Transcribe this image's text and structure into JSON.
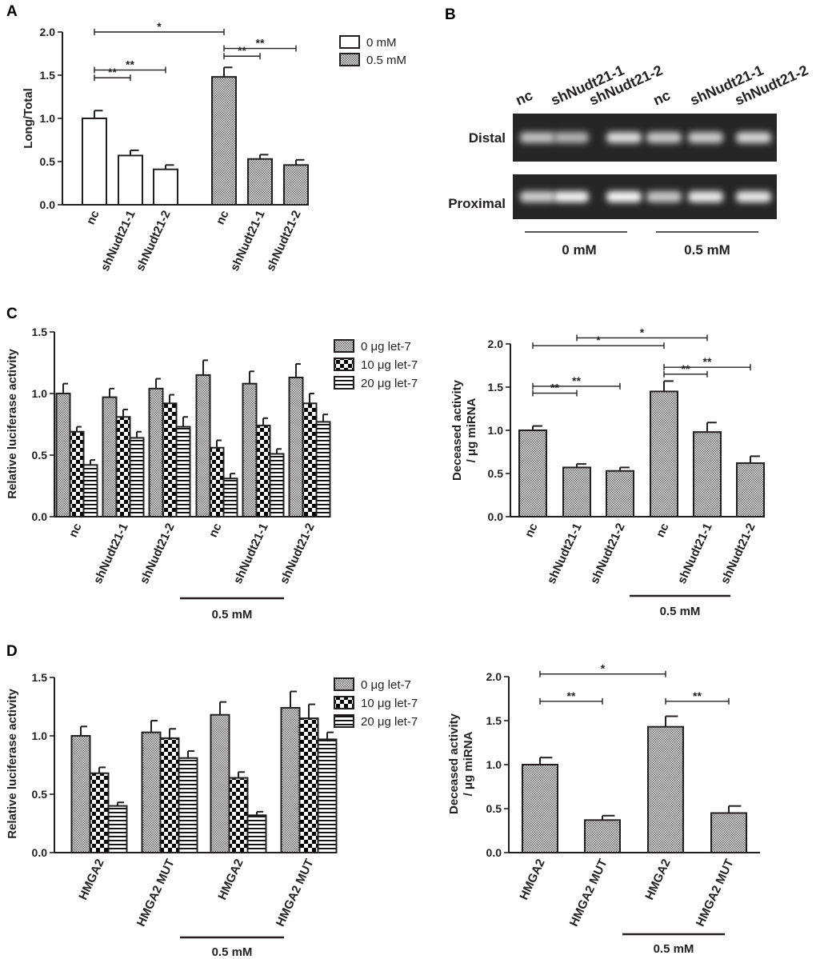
{
  "panel_labels": [
    "A",
    "B",
    "C",
    "D"
  ],
  "patterns": {
    "white": "#ffffff",
    "fine": "#7a7a7a",
    "checker": "#000000",
    "stripe": "#000000",
    "ink": "#231f20"
  },
  "chart_data": [
    {
      "id": "A",
      "type": "bar",
      "ylabel": "Long/Total",
      "ylim": [
        0,
        2.0
      ],
      "yticks": [
        "0.0",
        "0.5",
        "1.0",
        "1.5",
        "2.0"
      ],
      "categories": [
        "nc",
        "shNudt21-1",
        "shNudt21-2",
        "nc",
        "shNudt21-1",
        "shNudt21-2"
      ],
      "series": [
        {
          "name": "0 mM",
          "pattern": "white",
          "values": [
            1.0,
            0.57,
            0.41,
            null,
            null,
            null
          ],
          "errors": [
            0.09,
            0.06,
            0.05,
            null,
            null,
            null
          ]
        },
        {
          "name": "0.5 mM",
          "pattern": "fine",
          "values": [
            null,
            null,
            null,
            1.48,
            0.53,
            0.46
          ],
          "errors": [
            null,
            null,
            null,
            0.11,
            0.05,
            0.06
          ]
        }
      ],
      "legend": [
        "0 mM",
        "0.5 mM"
      ],
      "significance": [
        {
          "from": 0,
          "to": 3,
          "y": 2.0,
          "label": "*"
        },
        {
          "from": 0,
          "to": 1,
          "y": 1.47,
          "label": "**"
        },
        {
          "from": 0,
          "to": 2,
          "y": 1.56,
          "label": "**"
        },
        {
          "from": 3,
          "to": 4,
          "y": 1.72,
          "label": "**"
        },
        {
          "from": 3,
          "to": 5,
          "y": 1.81,
          "label": "**"
        }
      ]
    },
    {
      "id": "C-left",
      "type": "bar",
      "ylabel": "Relative luciferase activity",
      "ylim": [
        0,
        1.5
      ],
      "yticks": [
        "0.0",
        "0.5",
        "1.0",
        "1.5"
      ],
      "categories": [
        "nc",
        "shNudt21-1",
        "shNudt21-2",
        "nc",
        "shNudt21-1",
        "shNudt21-2"
      ],
      "series": [
        {
          "name": "0 μg let-7",
          "pattern": "fine",
          "values": [
            1.0,
            0.97,
            1.04,
            1.15,
            1.08,
            1.13
          ],
          "errors": [
            0.08,
            0.07,
            0.08,
            0.12,
            0.1,
            0.11
          ]
        },
        {
          "name": "10 μg let-7",
          "pattern": "checker",
          "values": [
            0.69,
            0.81,
            0.92,
            0.56,
            0.74,
            0.92
          ],
          "errors": [
            0.04,
            0.06,
            0.07,
            0.06,
            0.06,
            0.08
          ]
        },
        {
          "name": "20 μg let-7",
          "pattern": "stripe",
          "values": [
            0.42,
            0.64,
            0.73,
            0.31,
            0.51,
            0.77
          ],
          "errors": [
            0.04,
            0.05,
            0.08,
            0.04,
            0.04,
            0.06
          ]
        }
      ],
      "legend": [
        "0 μg let-7",
        "10 μg let-7",
        "20 μg let-7"
      ],
      "group_label": "0.5 mM"
    },
    {
      "id": "C-right",
      "type": "bar",
      "ylabel": "Deceased activity / μg miRNA",
      "ylim": [
        0,
        2.0
      ],
      "yticks": [
        "0.0",
        "0.5",
        "1.0",
        "1.5",
        "2.0"
      ],
      "categories": [
        "nc",
        "shNudt21-1",
        "shNudt21-2",
        "nc",
        "shNudt21-1",
        "shNudt21-2"
      ],
      "series": [
        {
          "name": "Deceased activity",
          "pattern": "fine",
          "values": [
            1.0,
            0.57,
            0.53,
            1.45,
            0.98,
            0.62
          ],
          "errors": [
            0.05,
            0.04,
            0.04,
            0.12,
            0.11,
            0.08
          ]
        }
      ],
      "group_label": "0.5 mM",
      "significance": [
        {
          "from": 1,
          "to": 4,
          "y": 2.07,
          "label": "*"
        },
        {
          "from": 0,
          "to": 3,
          "y": 1.98,
          "label": "*"
        },
        {
          "from": 3,
          "to": 5,
          "y": 1.73,
          "label": "**"
        },
        {
          "from": 3,
          "to": 4,
          "y": 1.65,
          "label": "**"
        },
        {
          "from": 0,
          "to": 2,
          "y": 1.51,
          "label": "**"
        },
        {
          "from": 0,
          "to": 1,
          "y": 1.43,
          "label": "**"
        }
      ]
    },
    {
      "id": "D-left",
      "type": "bar",
      "ylabel": "Relative luciferase activity",
      "ylim": [
        0,
        1.5
      ],
      "yticks": [
        "0.0",
        "0.5",
        "1.0",
        "1.5"
      ],
      "categories": [
        "HMGA2",
        "HMGA2 MUT",
        "HMGA2",
        "HMGA2 MUT"
      ],
      "series": [
        {
          "name": "0 μg let-7",
          "pattern": "fine",
          "values": [
            1.0,
            1.03,
            1.18,
            1.24
          ],
          "errors": [
            0.08,
            0.1,
            0.11,
            0.14
          ]
        },
        {
          "name": "10 μg let-7",
          "pattern": "checker",
          "values": [
            0.68,
            0.98,
            0.64,
            1.15
          ],
          "errors": [
            0.05,
            0.08,
            0.05,
            0.12
          ]
        },
        {
          "name": "20 μg let-7",
          "pattern": "stripe",
          "values": [
            0.4,
            0.81,
            0.32,
            0.97
          ],
          "errors": [
            0.03,
            0.06,
            0.03,
            0.06
          ]
        }
      ],
      "legend": [
        "0 μg let-7",
        "10 μg let-7",
        "20 μg let-7"
      ],
      "group_label": "0.5 mM"
    },
    {
      "id": "D-right",
      "type": "bar",
      "ylabel": "Deceased activity / μg miRNA",
      "ylim": [
        0,
        2.0
      ],
      "yticks": [
        "0.0",
        "0.5",
        "1.0",
        "1.5",
        "2.0"
      ],
      "categories": [
        "HMGA2",
        "HMGA2 MUT",
        "HMGA2",
        "HMGA2 MUT"
      ],
      "series": [
        {
          "name": "Deceased activity",
          "pattern": "fine",
          "values": [
            1.0,
            0.37,
            1.43,
            0.45
          ],
          "errors": [
            0.08,
            0.05,
            0.12,
            0.08
          ]
        }
      ],
      "group_label": "0.5 mM",
      "significance": [
        {
          "from": 0,
          "to": 2,
          "y": 2.03,
          "label": "*"
        },
        {
          "from": 0,
          "to": 1,
          "y": 1.72,
          "label": "**"
        },
        {
          "from": 2,
          "to": 3,
          "y": 1.72,
          "label": "**"
        }
      ]
    }
  ],
  "gel": {
    "lanes": [
      "nc",
      "shNudt21-1",
      "shNudt21-2",
      "nc",
      "shNudt21-1",
      "shNudt21-2"
    ],
    "rows": [
      "Distal",
      "Proximal"
    ],
    "intensity": {
      "Distal": [
        0.62,
        0.52,
        0.78,
        0.66,
        0.68,
        0.74
      ],
      "Proximal": [
        0.7,
        0.92,
        0.95,
        0.66,
        0.88,
        0.86
      ]
    },
    "groups": [
      "0 mM",
      "0.5 mM"
    ]
  }
}
